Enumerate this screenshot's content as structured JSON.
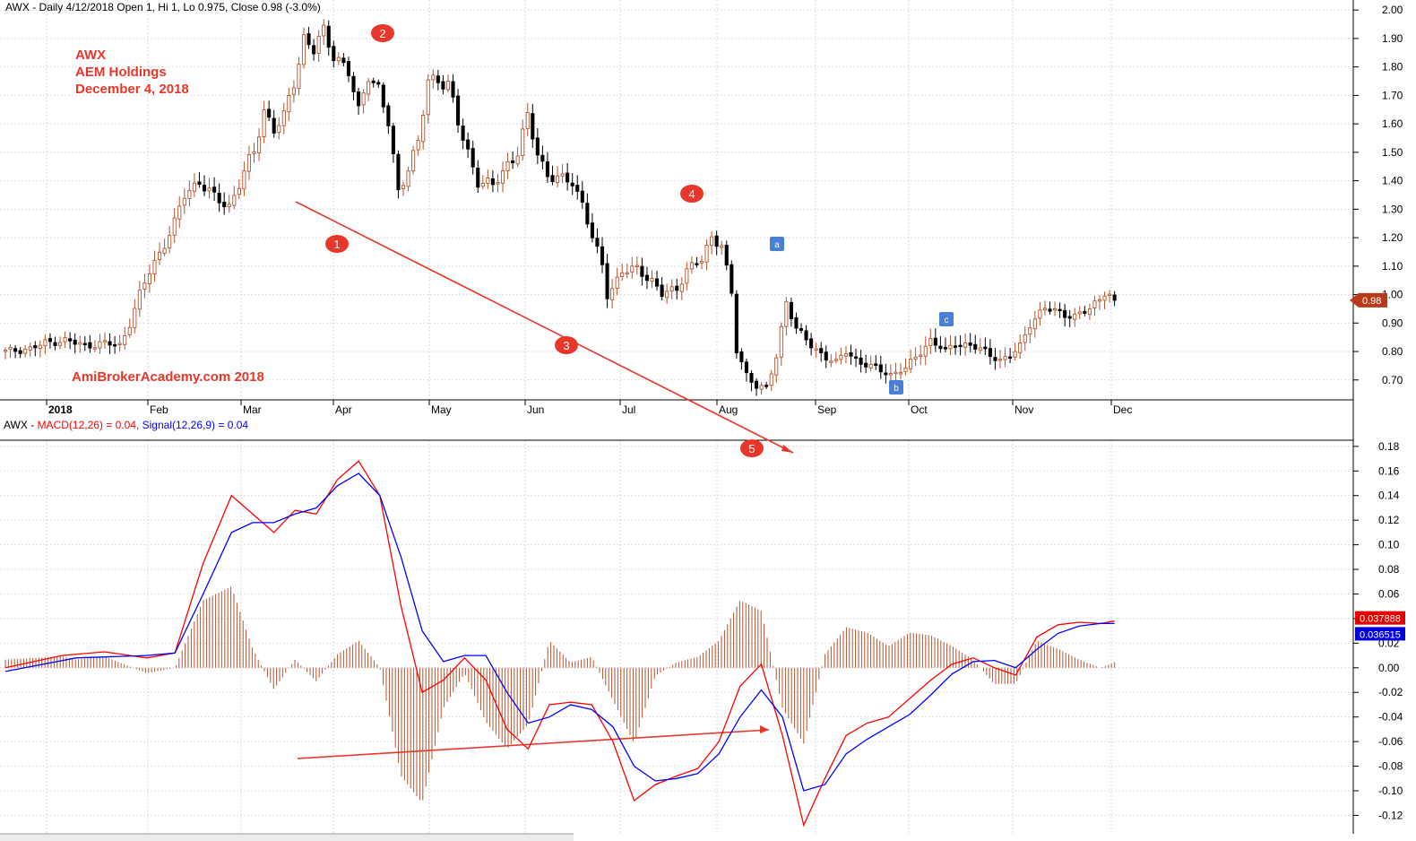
{
  "header": {
    "price_prefix": "AWX - Daily 4/12/2018 Open 1, Hi 1, Lo 0.975, Close 0.98 (-3.0%)",
    "macd_prefix": "AWX - ",
    "macd_label": "MACD(12,26) = 0.04,",
    "signal_label": "Signal(12,26,9) = 0.04"
  },
  "annotation_title": [
    "AWX",
    "AEM Holdings",
    "December 4, 2018"
  ],
  "watermark": "AmiBrokerAcademy.com 2018",
  "wave_labels": [
    "1",
    "2",
    "3",
    "4",
    "5"
  ],
  "pattern_labels": [
    "a",
    "b",
    "c"
  ],
  "last_price_tag": "0.98",
  "macd_tag": "0.037888",
  "signal_tag": "0.036515",
  "colors": {
    "up": "#b5532c",
    "down": "#000000",
    "macd": "#ff0000",
    "signal": "#0000ff",
    "hist": "#b5532c",
    "annot": "#e8372a",
    "pattern": "#4a7fd6"
  },
  "chart_data": [
    {
      "type": "candlestick",
      "title": "AWX - Daily 4/12/2018 Open 1, Hi 1, Lo 0.975, Close 0.98 (-3.0%)",
      "x_labels": [
        "2018",
        "Feb",
        "Mar",
        "Apr",
        "May",
        "Jun",
        "Jul",
        "Aug",
        "Sep",
        "Oct",
        "Nov",
        "Dec"
      ],
      "y_ticks": [
        "0.70",
        "0.80",
        "0.90",
        "1.00",
        "1.10",
        "1.20",
        "1.30",
        "1.40",
        "1.50",
        "1.60",
        "1.70",
        "1.80",
        "1.90",
        "2.00"
      ],
      "ylim": [
        0.63,
        2.01
      ],
      "last_close": 0.98,
      "grid": true,
      "anchors": [
        [
          0,
          0.8
        ],
        [
          5,
          0.81
        ],
        [
          8,
          0.83
        ],
        [
          12,
          0.84
        ],
        [
          16,
          0.82
        ],
        [
          20,
          0.83
        ],
        [
          23,
          0.82
        ],
        [
          25,
          0.9
        ],
        [
          27,
          1.0
        ],
        [
          29,
          1.08
        ],
        [
          32,
          1.18
        ],
        [
          34,
          1.25
        ],
        [
          36,
          1.35
        ],
        [
          39,
          1.4
        ],
        [
          42,
          1.34
        ],
        [
          45,
          1.31
        ],
        [
          48,
          1.43
        ],
        [
          50,
          1.5
        ],
        [
          52,
          1.65
        ],
        [
          54,
          1.58
        ],
        [
          56,
          1.62
        ],
        [
          58,
          1.75
        ],
        [
          60,
          1.9
        ],
        [
          62,
          1.86
        ],
        [
          64,
          1.92
        ],
        [
          66,
          1.85
        ],
        [
          69,
          1.78
        ],
        [
          71,
          1.64
        ],
        [
          73,
          1.78
        ],
        [
          75,
          1.72
        ],
        [
          77,
          1.6
        ],
        [
          79,
          1.36
        ],
        [
          81,
          1.45
        ],
        [
          83,
          1.53
        ],
        [
          85,
          1.75
        ],
        [
          87,
          1.76
        ],
        [
          89,
          1.74
        ],
        [
          91,
          1.6
        ],
        [
          93,
          1.5
        ],
        [
          95,
          1.4
        ],
        [
          98,
          1.38
        ],
        [
          101,
          1.46
        ],
        [
          103,
          1.5
        ],
        [
          105,
          1.62
        ],
        [
          107,
          1.5
        ],
        [
          109,
          1.42
        ],
        [
          112,
          1.4
        ],
        [
          114,
          1.4
        ],
        [
          116,
          1.32
        ],
        [
          118,
          1.2
        ],
        [
          120,
          1.1
        ],
        [
          121,
          1.0
        ],
        [
          124,
          1.08
        ],
        [
          127,
          1.09
        ],
        [
          130,
          1.05
        ],
        [
          132,
          1.0
        ],
        [
          135,
          1.02
        ],
        [
          137,
          1.09
        ],
        [
          140,
          1.12
        ],
        [
          142,
          1.2
        ],
        [
          144,
          1.18
        ],
        [
          146,
          1.0
        ],
        [
          147,
          0.8
        ],
        [
          149,
          0.72
        ],
        [
          151,
          0.68
        ],
        [
          153,
          0.67
        ],
        [
          155,
          0.78
        ],
        [
          157,
          0.98
        ],
        [
          159,
          0.88
        ],
        [
          162,
          0.82
        ],
        [
          165,
          0.78
        ],
        [
          167,
          0.76
        ],
        [
          169,
          0.8
        ],
        [
          172,
          0.76
        ],
        [
          175,
          0.74
        ],
        [
          178,
          0.72
        ],
        [
          181,
          0.74
        ],
        [
          184,
          0.8
        ],
        [
          186,
          0.84
        ],
        [
          189,
          0.8
        ],
        [
          191,
          0.83
        ],
        [
          194,
          0.82
        ],
        [
          197,
          0.8
        ],
        [
          200,
          0.77
        ],
        [
          202,
          0.78
        ],
        [
          204,
          0.82
        ],
        [
          206,
          0.9
        ],
        [
          209,
          0.95
        ],
        [
          212,
          0.94
        ],
        [
          215,
          0.92
        ],
        [
          218,
          0.95
        ],
        [
          221,
          1.01
        ],
        [
          223,
          0.98
        ]
      ]
    },
    {
      "type": "line",
      "title": "AWX - MACD(12,26) = 0.04, Signal(12,26,9) = 0.04",
      "y_ticks": [
        "-0.12",
        "-0.10",
        "-0.08",
        "-0.06",
        "-0.04",
        "-0.02",
        "0.00",
        "0.02",
        "0.04",
        "0.06",
        "0.08",
        "0.10",
        "0.12",
        "0.14",
        "0.16",
        "0.18"
      ],
      "ylim": [
        -0.135,
        0.185
      ],
      "series": [
        {
          "name": "MACD(12,26)",
          "points": [
            [
              0,
              0.0
            ],
            [
              8,
              0.01
            ],
            [
              14,
              0.013
            ],
            [
              20,
              0.008
            ],
            [
              24,
              0.012
            ],
            [
              28,
              0.085
            ],
            [
              32,
              0.14
            ],
            [
              35,
              0.125
            ],
            [
              38,
              0.11
            ],
            [
              41,
              0.128
            ],
            [
              44,
              0.125
            ],
            [
              47,
              0.153
            ],
            [
              50,
              0.168
            ],
            [
              53,
              0.14
            ],
            [
              56,
              0.05
            ],
            [
              59,
              -0.02
            ],
            [
              62,
              -0.01
            ],
            [
              65,
              0.008
            ],
            [
              68,
              -0.01
            ],
            [
              71,
              -0.05
            ],
            [
              74,
              -0.066
            ],
            [
              77,
              -0.03
            ],
            [
              80,
              -0.028
            ],
            [
              83,
              -0.03
            ],
            [
              86,
              -0.06
            ],
            [
              89,
              -0.108
            ],
            [
              92,
              -0.095
            ],
            [
              95,
              -0.088
            ],
            [
              98,
              -0.082
            ],
            [
              101,
              -0.06
            ],
            [
              104,
              -0.015
            ],
            [
              107,
              0.003
            ],
            [
              110,
              -0.055
            ],
            [
              113,
              -0.128
            ],
            [
              116,
              -0.09
            ],
            [
              119,
              -0.055
            ],
            [
              122,
              -0.045
            ],
            [
              125,
              -0.04
            ],
            [
              128,
              -0.025
            ],
            [
              131,
              -0.01
            ],
            [
              134,
              0.003
            ],
            [
              137,
              0.008
            ],
            [
              140,
              0.0
            ],
            [
              143,
              -0.006
            ],
            [
              146,
              0.025
            ],
            [
              149,
              0.035
            ],
            [
              152,
              0.037
            ],
            [
              155,
              0.036
            ],
            [
              157,
              0.038
            ]
          ]
        },
        {
          "name": "Signal(12,26,9)",
          "points": [
            [
              0,
              -0.003
            ],
            [
              10,
              0.008
            ],
            [
              20,
              0.01
            ],
            [
              24,
              0.012
            ],
            [
              28,
              0.06
            ],
            [
              32,
              0.11
            ],
            [
              35,
              0.118
            ],
            [
              38,
              0.118
            ],
            [
              41,
              0.125
            ],
            [
              44,
              0.13
            ],
            [
              47,
              0.148
            ],
            [
              50,
              0.158
            ],
            [
              53,
              0.14
            ],
            [
              56,
              0.09
            ],
            [
              59,
              0.03
            ],
            [
              62,
              0.005
            ],
            [
              65,
              0.01
            ],
            [
              68,
              0.01
            ],
            [
              71,
              -0.02
            ],
            [
              74,
              -0.045
            ],
            [
              77,
              -0.04
            ],
            [
              80,
              -0.03
            ],
            [
              83,
              -0.034
            ],
            [
              86,
              -0.048
            ],
            [
              89,
              -0.08
            ],
            [
              92,
              -0.092
            ],
            [
              95,
              -0.09
            ],
            [
              98,
              -0.086
            ],
            [
              101,
              -0.07
            ],
            [
              104,
              -0.04
            ],
            [
              107,
              -0.018
            ],
            [
              110,
              -0.04
            ],
            [
              113,
              -0.1
            ],
            [
              116,
              -0.095
            ],
            [
              119,
              -0.07
            ],
            [
              122,
              -0.058
            ],
            [
              125,
              -0.048
            ],
            [
              128,
              -0.038
            ],
            [
              131,
              -0.022
            ],
            [
              134,
              -0.005
            ],
            [
              137,
              0.005
            ],
            [
              140,
              0.006
            ],
            [
              143,
              0.0
            ],
            [
              146,
              0.015
            ],
            [
              149,
              0.028
            ],
            [
              152,
              0.034
            ],
            [
              155,
              0.036
            ],
            [
              157,
              0.036
            ]
          ]
        }
      ]
    }
  ]
}
